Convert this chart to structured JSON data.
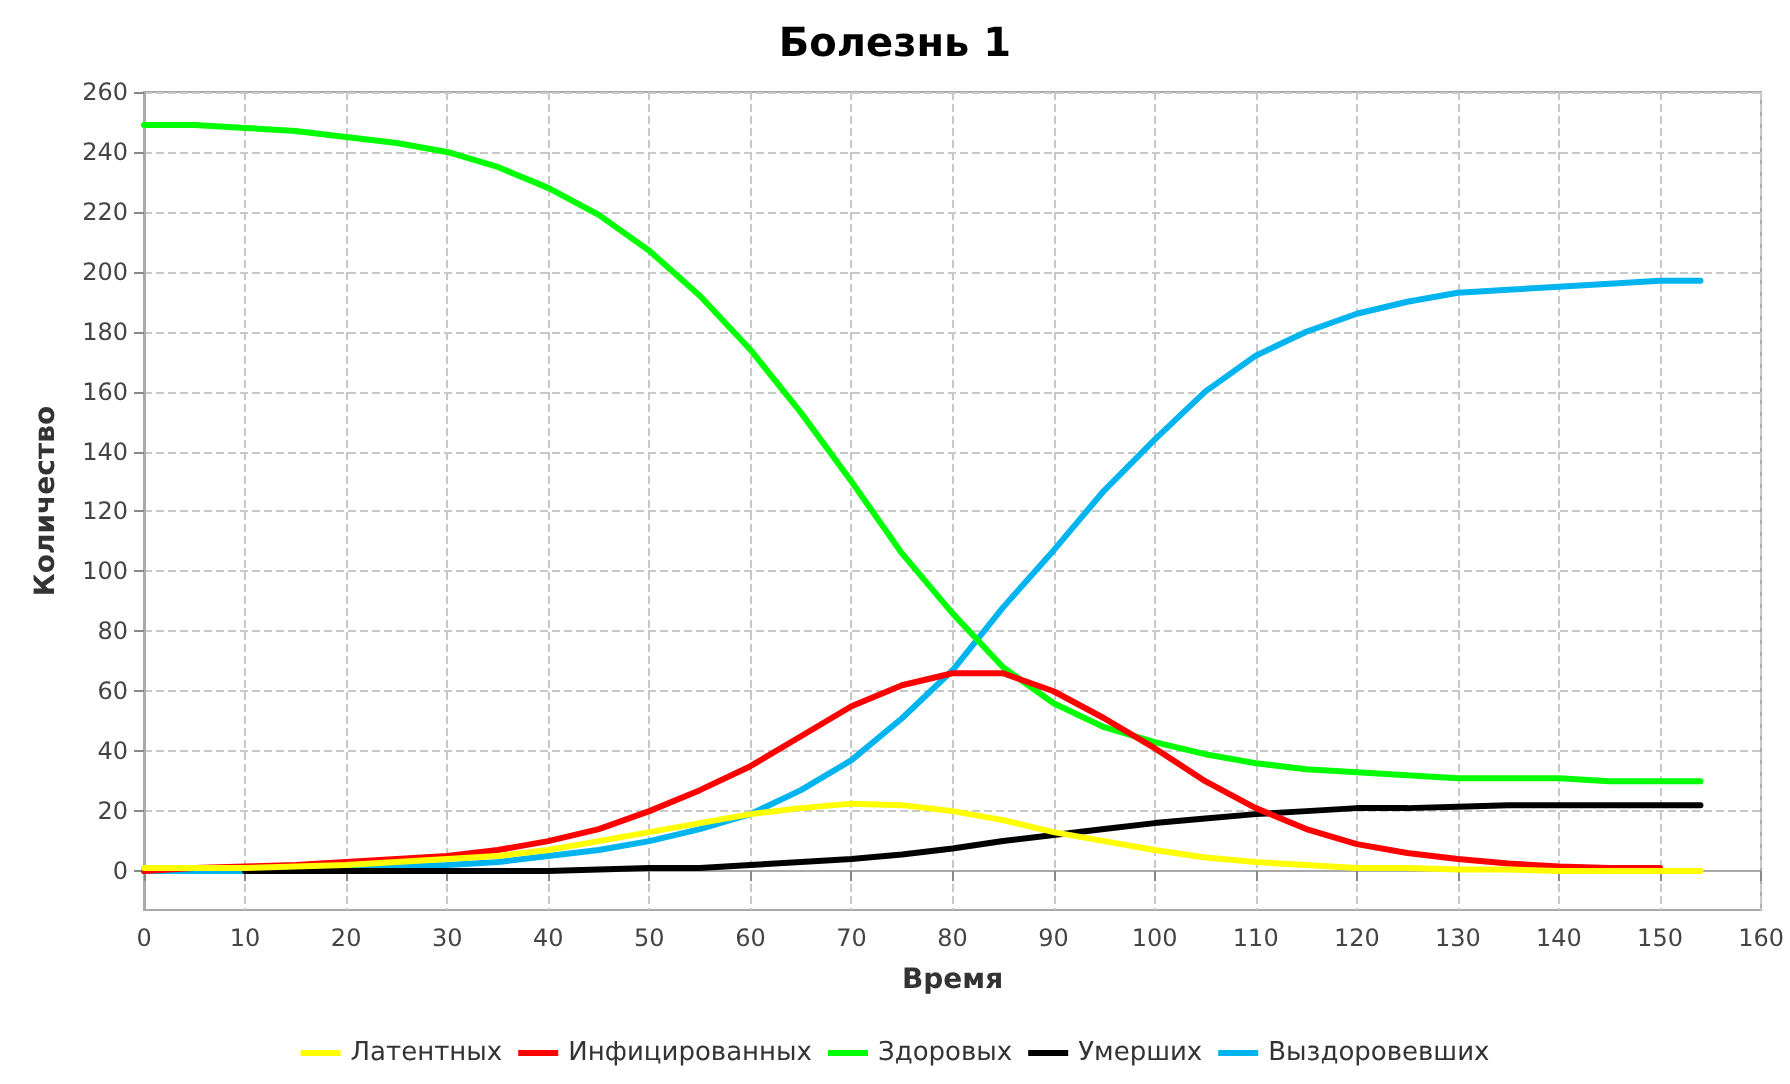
{
  "chart_data": {
    "type": "line",
    "title": "Болезнь 1",
    "xlabel": "Время",
    "ylabel": "Количество",
    "x": [
      0,
      5,
      10,
      15,
      20,
      25,
      30,
      35,
      40,
      45,
      50,
      55,
      60,
      65,
      70,
      75,
      80,
      85,
      90,
      95,
      100,
      105,
      110,
      115,
      120,
      125,
      130,
      135,
      140,
      145,
      150,
      154
    ],
    "series": [
      {
        "name": "Латентных",
        "color": "#ffff00",
        "values": [
          1,
          1,
          1,
          1.5,
          2,
          3,
          4,
          5,
          7,
          10,
          13,
          16,
          19,
          21,
          22.5,
          22,
          20,
          17,
          13,
          10,
          7,
          4.5,
          3,
          2,
          1,
          1,
          0.5,
          0.5,
          0,
          0,
          0,
          0
        ]
      },
      {
        "name": "Инфицированных",
        "color": "#ff0000",
        "values": [
          0,
          1,
          1.5,
          2,
          3,
          4,
          5,
          7,
          10,
          14,
          20,
          27,
          35,
          45,
          55,
          62,
          66,
          66,
          60,
          51,
          41,
          30,
          21,
          14,
          9,
          6,
          4,
          2.5,
          1.5,
          1,
          1,
          null
        ]
      },
      {
        "name": "Здоровых",
        "color": "#00ff00",
        "values": [
          249,
          249,
          248,
          247,
          245,
          243,
          240,
          235,
          228,
          219,
          207,
          192,
          174,
          153,
          130,
          106,
          86,
          68,
          56,
          48,
          43,
          39,
          36,
          34,
          33,
          32,
          31,
          31,
          31,
          30,
          30,
          30
        ]
      },
      {
        "name": "Умерших",
        "color": "#000000",
        "values": [
          null,
          null,
          0,
          0,
          0,
          0,
          0,
          0,
          0,
          0.5,
          1,
          1,
          2,
          3,
          4,
          5.5,
          7.5,
          10,
          12,
          14,
          16,
          17.5,
          19,
          20,
          21,
          21,
          21.5,
          22,
          22,
          22,
          22,
          22
        ]
      },
      {
        "name": "Выздоровевших",
        "color": "#00b4f0",
        "values": [
          0,
          0,
          0,
          0.5,
          1,
          1.5,
          2,
          3,
          5,
          7,
          10,
          14,
          19,
          27,
          37,
          51,
          67,
          88,
          107,
          127,
          144,
          160,
          172,
          180,
          186,
          190,
          193,
          194,
          195,
          196,
          197,
          197
        ]
      }
    ],
    "xlim": [
      0,
      160
    ],
    "xticks": [
      0,
      10,
      20,
      30,
      40,
      50,
      60,
      70,
      80,
      90,
      100,
      110,
      120,
      130,
      140,
      150,
      160
    ],
    "ylim": [
      -13,
      260
    ],
    "yticks": [
      0,
      20,
      40,
      60,
      80,
      100,
      120,
      140,
      160,
      180,
      200,
      220,
      240,
      260
    ],
    "grid": true,
    "legend": "bottom",
    "marker": "none",
    "line_style": "solid"
  }
}
